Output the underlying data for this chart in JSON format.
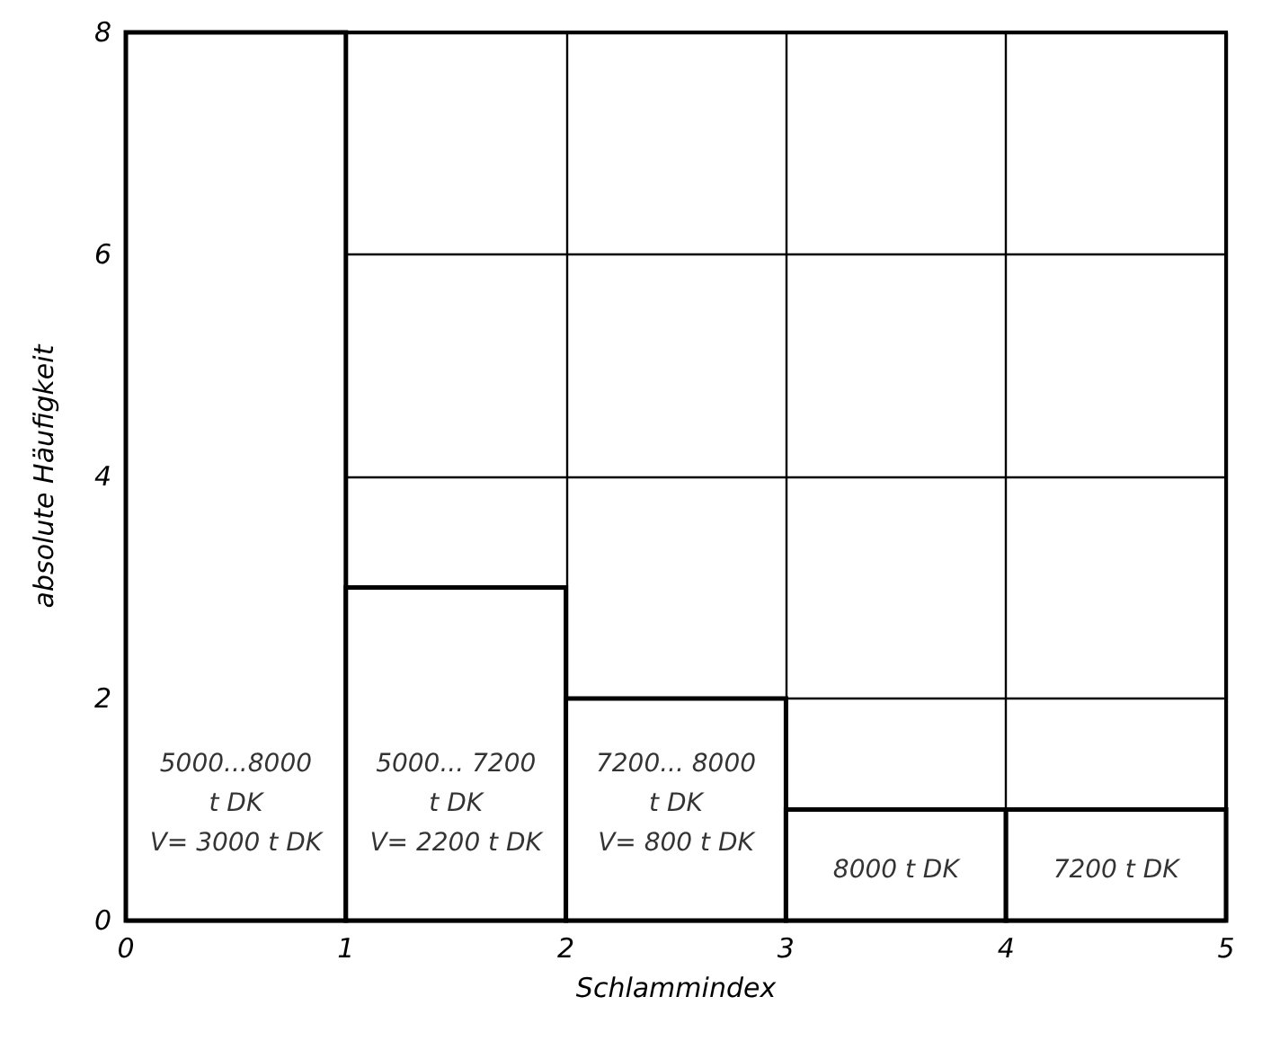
{
  "chart_data": {
    "type": "histogram",
    "xlabel": "Schlammindex",
    "ylabel": "absolute Häufigkeit",
    "bins": [
      0,
      1,
      2,
      3,
      4,
      5
    ],
    "values": [
      8,
      3,
      2,
      1,
      1
    ],
    "color": "#ffffff",
    "xlim": [
      0,
      5
    ],
    "ylim": [
      0,
      8
    ],
    "xticks": [
      0,
      1,
      2,
      3,
      4,
      5
    ],
    "yticks": [
      0,
      2,
      4,
      6,
      8
    ],
    "grid": true,
    "annotations": [
      "5000...8000\nt DK\nV= 3000 t DK",
      "5000... 7200\nt DK\nV= 2200 t DK",
      "7200... 8000\nt DK\nV= 800 t DK",
      "8000 t DK",
      "7200 t DK"
    ]
  }
}
